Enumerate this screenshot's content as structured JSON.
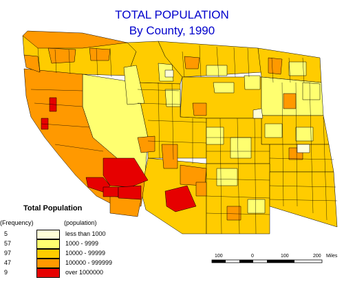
{
  "title": "TOTAL POPULATION",
  "subtitle": "By County, 1990",
  "legend": {
    "title": "Total Population",
    "freq_header": "(Frequency)",
    "pop_header": "(population)",
    "classes": [
      {
        "freq": "5",
        "label": "less than 1000",
        "color": "#fffed8"
      },
      {
        "freq": "57",
        "label": "1000 - 9999",
        "color": "#ffff70"
      },
      {
        "freq": "97",
        "label": "10000 - 99999",
        "color": "#ffcc00"
      },
      {
        "freq": "47",
        "label": "100000 - 999999",
        "color": "#ff9900"
      },
      {
        "freq": "9",
        "label": "over 1000000",
        "color": "#e60000"
      }
    ]
  },
  "scale": {
    "labels": [
      "100",
      "0",
      "100",
      "200"
    ],
    "unit": "Miles"
  }
}
